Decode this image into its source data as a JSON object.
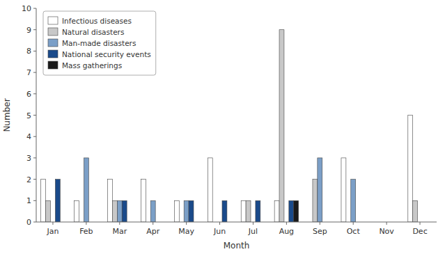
{
  "chart_data": {
    "type": "bar",
    "xlabel": "Month",
    "ylabel": "Number",
    "categories": [
      "Jan",
      "Feb",
      "Mar",
      "Apr",
      "May",
      "Jun",
      "Jul",
      "Aug",
      "Sep",
      "Oct",
      "Nov",
      "Dec"
    ],
    "series": [
      {
        "name": "Infectious diseases",
        "color": "#ffffff",
        "values": [
          2,
          1,
          2,
          2,
          1,
          3,
          1,
          1,
          0,
          3,
          0,
          5
        ]
      },
      {
        "name": "Natural disasters",
        "color": "#c8c8c8",
        "values": [
          1,
          0,
          1,
          0,
          0,
          0,
          1,
          9,
          2,
          0,
          0,
          1
        ]
      },
      {
        "name": "Man-made disasters",
        "color": "#7b9fc7",
        "values": [
          0,
          3,
          1,
          1,
          1,
          0,
          0,
          0,
          3,
          2,
          0,
          0
        ]
      },
      {
        "name": "National security events",
        "color": "#1a4a8a",
        "values": [
          2,
          0,
          1,
          0,
          1,
          1,
          1,
          1,
          0,
          0,
          0,
          0
        ]
      },
      {
        "name": "Mass gatherings",
        "color": "#1a1a1a",
        "values": [
          0,
          0,
          0,
          0,
          0,
          0,
          0,
          1,
          0,
          0,
          0,
          0
        ]
      }
    ],
    "ylim": [
      0,
      10
    ],
    "yticks": [
      0,
      1,
      2,
      3,
      4,
      5,
      6,
      7,
      8,
      9,
      10
    ],
    "grid": false,
    "legend": "top-left"
  }
}
